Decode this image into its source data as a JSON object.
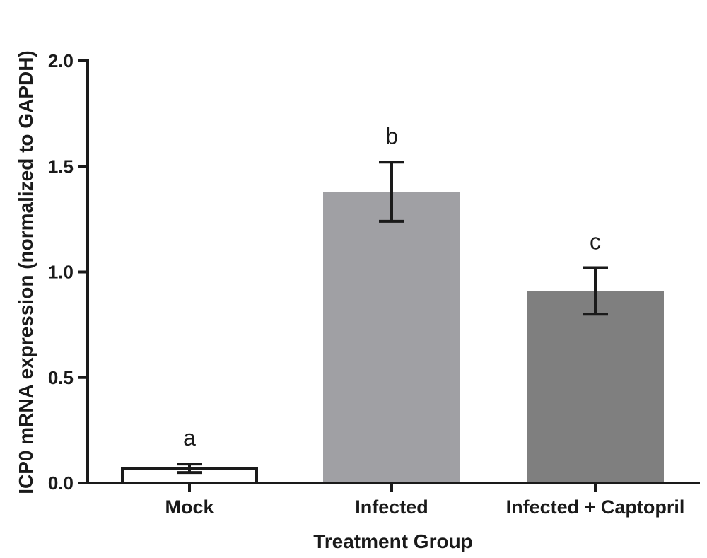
{
  "chart_data": {
    "type": "bar",
    "categories": [
      "Mock",
      "Infected",
      "Infected + Captopril"
    ],
    "values": [
      0.07,
      1.38,
      0.91
    ],
    "errors": [
      0.02,
      0.14,
      0.11
    ],
    "significance_labels": [
      "a",
      "b",
      "c"
    ],
    "bar_colors": [
      "#ffffff",
      "#a0a0a4",
      "#7f7f7f"
    ],
    "xlabel": "Treatment Group",
    "ylabel": "ICP0 mRNA expression (normalized to GAPDH)",
    "ylim": [
      0,
      2.0
    ],
    "yticks": [
      0.0,
      0.5,
      1.0,
      1.5,
      2.0
    ],
    "ytick_labels": [
      "0.0",
      "0.5",
      "1.0",
      "1.5",
      "2.0"
    ],
    "grid": false
  }
}
